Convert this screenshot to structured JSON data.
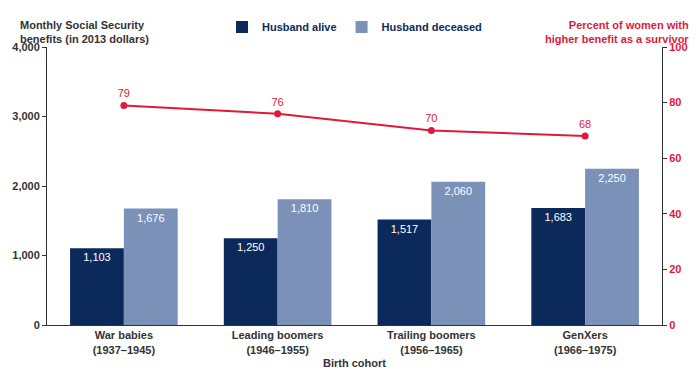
{
  "chart_data": {
    "type": "bar",
    "y_label": "Monthly Social Security\nbenefits (in 2013 dollars)",
    "y2_label": "Percent of women with\nhigher benefit as a survivor",
    "x_label": "Birth cohort",
    "categories": [
      "War babies\n(1937–1945)",
      "Leading boomers\n(1946–1955)",
      "Trailing boomers\n(1956–1965)",
      "GenXers\n(1966–1975)"
    ],
    "series": [
      {
        "name": "Husband alive",
        "color": "#0b2a5b",
        "values": [
          1103,
          1250,
          1517,
          1683
        ],
        "value_labels": [
          "1,103",
          "1,250",
          "1,517",
          "1,683"
        ]
      },
      {
        "name": "Husband deceased",
        "color": "#7b91b8",
        "values": [
          1676,
          1810,
          2060,
          2250
        ],
        "value_labels": [
          "1,676",
          "1,810",
          "2,060",
          "2,250"
        ]
      },
      {
        "type": "line",
        "axis": "y2",
        "color": "#e0193a",
        "marker": "circle",
        "values": [
          79,
          76,
          70,
          68
        ]
      }
    ],
    "ylim": [
      0,
      4000
    ],
    "yticks": [
      0,
      {
        "value": 1000,
        "label": "1,000"
      },
      {
        "value": 2000,
        "label": "2,000"
      },
      {
        "value": 3000,
        "label": "3,000"
      },
      {
        "value": 4000,
        "label": "4,000"
      }
    ],
    "y2lim": [
      0,
      100
    ],
    "y2ticks": [
      0,
      20,
      40,
      60,
      80,
      100
    ],
    "data_labels": true,
    "grid": false,
    "legend": "top"
  }
}
